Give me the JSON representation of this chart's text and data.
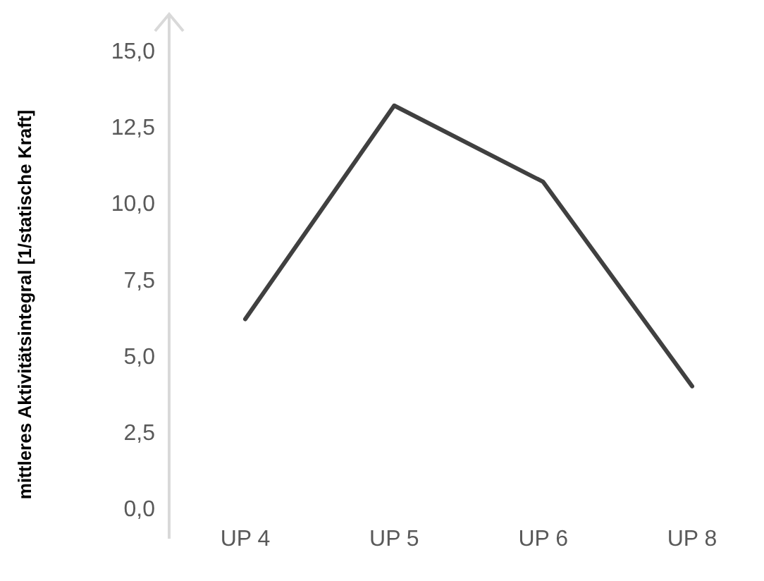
{
  "chart_data": {
    "type": "line",
    "ylabel": "mittleres Aktivitätsintegral [1/statische Kraft]",
    "categories": [
      "UP 4",
      "UP 5",
      "UP 6",
      "UP 8"
    ],
    "series": [
      {
        "color": "#404040",
        "values": [
          6.2,
          13.2,
          10.7,
          4.0
        ]
      }
    ],
    "ylim": [
      -1,
      16.2
    ],
    "yticks": [
      {
        "value": 0,
        "label": "0,0"
      },
      {
        "value": 2.5,
        "label": "2,5"
      },
      {
        "value": 5,
        "label": "5,0"
      },
      {
        "value": 7.5,
        "label": "7,5"
      },
      {
        "value": 10,
        "label": "10,0"
      },
      {
        "value": 12.5,
        "label": "12,5"
      },
      {
        "value": 15,
        "label": "15,0"
      }
    ],
    "grid": false,
    "marker": "none",
    "line_style": "solid"
  }
}
